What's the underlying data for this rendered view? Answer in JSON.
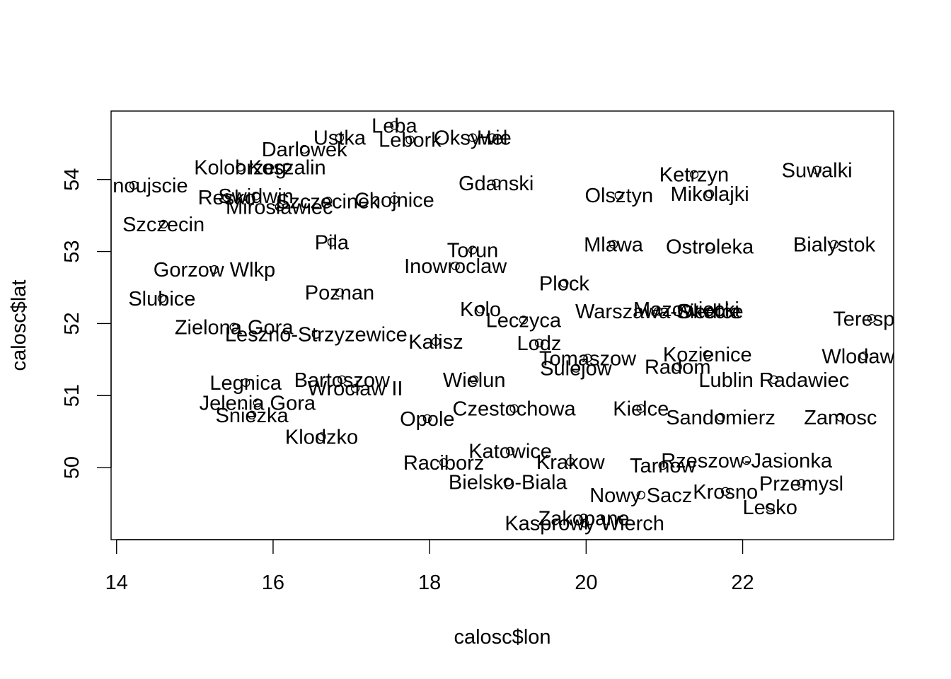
{
  "chart_data": {
    "type": "scatter",
    "title": "",
    "xlabel": "calosc$lon",
    "ylabel": "calosc$lat",
    "xlim": [
      13.93,
      23.93
    ],
    "ylim": [
      49.0,
      54.95
    ],
    "x_ticks": [
      14,
      16,
      18,
      20,
      22
    ],
    "y_ticks": [
      50,
      51,
      52,
      53,
      54
    ],
    "grid": false,
    "legend": "none",
    "points": [
      {
        "name": "Leba",
        "lon": 17.55,
        "lat": 54.75
      },
      {
        "name": "Ustka",
        "lon": 16.85,
        "lat": 54.58
      },
      {
        "name": "Lebork",
        "lon": 17.75,
        "lat": 54.55
      },
      {
        "name": "Oksywie",
        "lon": 18.55,
        "lat": 54.58
      },
      {
        "name": "Hel",
        "lon": 18.8,
        "lat": 54.58
      },
      {
        "name": "Darlowek",
        "lon": 16.4,
        "lat": 54.42
      },
      {
        "name": "Kolobrzeg",
        "lon": 15.58,
        "lat": 54.17
      },
      {
        "name": "Koszalin",
        "lon": 16.18,
        "lat": 54.17
      },
      {
        "name": "Swinoujscie",
        "lon": 14.22,
        "lat": 53.92
      },
      {
        "name": "Resko",
        "lon": 15.41,
        "lat": 53.75
      },
      {
        "name": "Swidwin",
        "lon": 15.78,
        "lat": 53.77
      },
      {
        "name": "Mirosławiec",
        "lon": 16.08,
        "lat": 53.62
      },
      {
        "name": "Szczecinek",
        "lon": 16.7,
        "lat": 53.7
      },
      {
        "name": "Chojnice",
        "lon": 17.55,
        "lat": 53.72
      },
      {
        "name": "Szczecin",
        "lon": 14.6,
        "lat": 53.38
      },
      {
        "name": "Gdanski",
        "lon": 18.85,
        "lat": 53.95
      },
      {
        "name": "Pila",
        "lon": 16.75,
        "lat": 53.13
      },
      {
        "name": "Torun",
        "lon": 18.55,
        "lat": 53.02
      },
      {
        "name": "Inowroclaw",
        "lon": 18.33,
        "lat": 52.8
      },
      {
        "name": "Gorzow Wlkp",
        "lon": 15.25,
        "lat": 52.75
      },
      {
        "name": "Poznan",
        "lon": 16.85,
        "lat": 52.43
      },
      {
        "name": "Slubice",
        "lon": 14.58,
        "lat": 52.35
      },
      {
        "name": "Zielona Gora",
        "lon": 15.5,
        "lat": 51.95
      },
      {
        "name": "Leszno-Strzyzewice",
        "lon": 16.55,
        "lat": 51.85
      },
      {
        "name": "Kalisz",
        "lon": 18.08,
        "lat": 51.75
      },
      {
        "name": "Kolo",
        "lon": 18.65,
        "lat": 52.2
      },
      {
        "name": "Leczyca",
        "lon": 19.2,
        "lat": 52.05
      },
      {
        "name": "Plock",
        "lon": 19.72,
        "lat": 52.56
      },
      {
        "name": "Lodz",
        "lon": 19.4,
        "lat": 51.73
      },
      {
        "name": "Tomaszow",
        "lon": 20.02,
        "lat": 51.52
      },
      {
        "name": "Sulejow",
        "lon": 19.87,
        "lat": 51.38
      },
      {
        "name": "Olsztyn",
        "lon": 20.42,
        "lat": 53.78
      },
      {
        "name": "Mlawa",
        "lon": 20.35,
        "lat": 53.1
      },
      {
        "name": "Warszawa-Okecie",
        "lon": 20.92,
        "lat": 52.17
      },
      {
        "name": "Mazowiecki",
        "lon": 21.28,
        "lat": 52.2
      },
      {
        "name": "Siedlce",
        "lon": 21.58,
        "lat": 52.17
      },
      {
        "name": "Ketrzyn",
        "lon": 21.38,
        "lat": 54.07
      },
      {
        "name": "Mikolajki",
        "lon": 21.58,
        "lat": 53.8
      },
      {
        "name": "Ostroleka",
        "lon": 21.58,
        "lat": 53.07
      },
      {
        "name": "Suwalki",
        "lon": 22.95,
        "lat": 54.13
      },
      {
        "name": "Bialystok",
        "lon": 23.17,
        "lat": 53.1
      },
      {
        "name": "Terespol",
        "lon": 23.65,
        "lat": 52.07
      },
      {
        "name": "Radom",
        "lon": 21.17,
        "lat": 51.4
      },
      {
        "name": "Kozienice",
        "lon": 21.55,
        "lat": 51.57
      },
      {
        "name": "Wlodawa",
        "lon": 23.55,
        "lat": 51.55
      },
      {
        "name": "Lublin Radawiec",
        "lon": 22.4,
        "lat": 51.22
      },
      {
        "name": "Legnica",
        "lon": 15.65,
        "lat": 51.18
      },
      {
        "name": "Bartoszow",
        "lon": 16.88,
        "lat": 51.22
      },
      {
        "name": "Wroclaw II",
        "lon": 17.05,
        "lat": 51.1
      },
      {
        "name": "Wielun",
        "lon": 18.57,
        "lat": 51.22
      },
      {
        "name": "Jelenia Gora",
        "lon": 15.8,
        "lat": 50.9
      },
      {
        "name": "Sniezka",
        "lon": 15.73,
        "lat": 50.73
      },
      {
        "name": "Klodzko",
        "lon": 16.62,
        "lat": 50.43
      },
      {
        "name": "Opole",
        "lon": 17.97,
        "lat": 50.68
      },
      {
        "name": "Czestochowa",
        "lon": 19.08,
        "lat": 50.82
      },
      {
        "name": "Kielce",
        "lon": 20.7,
        "lat": 50.82
      },
      {
        "name": "Sandomierz",
        "lon": 21.72,
        "lat": 50.7
      },
      {
        "name": "Zamosc",
        "lon": 23.25,
        "lat": 50.7
      },
      {
        "name": "Katowice",
        "lon": 19.03,
        "lat": 50.23
      },
      {
        "name": "Raciborz",
        "lon": 18.18,
        "lat": 50.07
      },
      {
        "name": "Bielsko-Biala",
        "lon": 19.0,
        "lat": 49.8
      },
      {
        "name": "Krakow",
        "lon": 19.8,
        "lat": 50.08
      },
      {
        "name": "Tarnow",
        "lon": 20.98,
        "lat": 50.03
      },
      {
        "name": "Rzeszow-Jasionka",
        "lon": 22.05,
        "lat": 50.1
      },
      {
        "name": "Przemysl",
        "lon": 22.75,
        "lat": 49.78
      },
      {
        "name": "Nowy Sacz",
        "lon": 20.7,
        "lat": 49.62
      },
      {
        "name": "Krosno",
        "lon": 21.78,
        "lat": 49.67
      },
      {
        "name": "Lesko",
        "lon": 22.35,
        "lat": 49.45
      },
      {
        "name": "Zakopane",
        "lon": 19.97,
        "lat": 49.3
      },
      {
        "name": "Kasprowy Wierch",
        "lon": 19.98,
        "lat": 49.23
      }
    ]
  }
}
